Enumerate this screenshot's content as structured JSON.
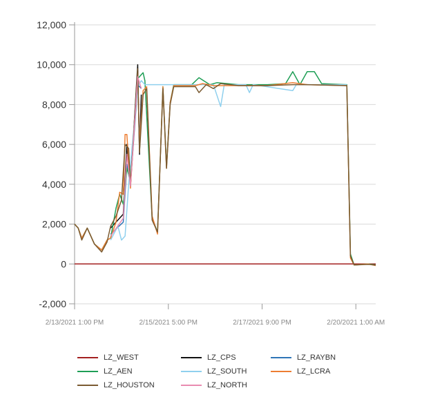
{
  "chart_data": {
    "type": "line",
    "title": "",
    "xlabel": "",
    "ylabel": "",
    "ylim": [
      -2000,
      12000
    ],
    "yticks": [
      -2000,
      0,
      2000,
      4000,
      6000,
      8000,
      10000,
      12000
    ],
    "ytick_labels": [
      "-2,000",
      "0",
      "2,000",
      "4,000",
      "6,000",
      "8,000",
      "10,000",
      "12,000"
    ],
    "xlim": [
      "2021-02-13 13:00",
      "2021-02-20 12:00"
    ],
    "xticks": [
      "2021-02-13 13:00",
      "2021-02-15 17:00",
      "2021-02-17 21:00",
      "2021-02-20 01:00"
    ],
    "xtick_labels": [
      "2/13/2021 1:00 PM",
      "2/15/2021 5:00 PM",
      "2/17/2021 9:00 PM",
      "2/20/2021 1:00 AM"
    ],
    "grid": "horizontal",
    "legend_position": "bottom",
    "series": [
      {
        "name": "LZ_WEST",
        "color": "#a31f1f",
        "points": [
          [
            "2021-02-13 13:00",
            0
          ],
          [
            "2021-02-20 12:00",
            0
          ]
        ]
      },
      {
        "name": "LZ_CPS",
        "color": "#111111",
        "points": [
          [
            "2021-02-14 09:00",
            1800
          ],
          [
            "2021-02-14 16:00",
            2500
          ],
          [
            "2021-02-14 18:00",
            6000
          ],
          [
            "2021-02-14 20:00",
            3900
          ],
          [
            "2021-02-15 00:00",
            10000
          ],
          [
            "2021-02-15 01:00",
            5500
          ],
          [
            "2021-02-15 02:00",
            8500
          ]
        ]
      },
      {
        "name": "LZ_RAYBN",
        "color": "#2e75b6",
        "points": [
          [
            "2021-02-14 09:00",
            1500
          ],
          [
            "2021-02-14 16:00",
            2100
          ],
          [
            "2021-02-14 18:00",
            5000
          ],
          [
            "2021-02-14 20:00",
            4000
          ],
          [
            "2021-02-15 00:00",
            9000
          ],
          [
            "2021-02-15 02:00",
            8800
          ]
        ]
      },
      {
        "name": "LZ_AEN",
        "color": "#1e9e55",
        "points": [
          [
            "2021-02-13 13:00",
            2000
          ],
          [
            "2021-02-13 15:00",
            1800
          ],
          [
            "2021-02-13 17:00",
            1300
          ],
          [
            "2021-02-13 20:00",
            1800
          ],
          [
            "2021-02-14 00:00",
            1000
          ],
          [
            "2021-02-14 04:00",
            700
          ],
          [
            "2021-02-14 07:00",
            1200
          ],
          [
            "2021-02-14 09:00",
            1300
          ],
          [
            "2021-02-14 12:00",
            2800
          ],
          [
            "2021-02-14 14:00",
            3500
          ],
          [
            "2021-02-14 16:00",
            3000
          ],
          [
            "2021-02-14 18:00",
            4800
          ],
          [
            "2021-02-14 20:00",
            4200
          ],
          [
            "2021-02-15 00:00",
            9300
          ],
          [
            "2021-02-15 03:00",
            9600
          ],
          [
            "2021-02-15 04:00",
            9200
          ],
          [
            "2021-02-15 08:00",
            2300
          ],
          [
            "2021-02-15 11:00",
            1600
          ],
          [
            "2021-02-15 14:00",
            8900
          ],
          [
            "2021-02-15 16:00",
            4900
          ],
          [
            "2021-02-15 18:00",
            8100
          ],
          [
            "2021-02-15 20:00",
            9000
          ],
          [
            "2021-02-16 06:00",
            9000
          ],
          [
            "2021-02-16 10:00",
            9350
          ],
          [
            "2021-02-16 16:00",
            9000
          ],
          [
            "2021-02-16 20:00",
            9100
          ],
          [
            "2021-02-17 08:00",
            9000
          ],
          [
            "2021-02-18 00:00",
            9000
          ],
          [
            "2021-02-18 10:00",
            9050
          ],
          [
            "2021-02-18 14:00",
            9650
          ],
          [
            "2021-02-18 18:00",
            9000
          ],
          [
            "2021-02-18 22:00",
            9650
          ],
          [
            "2021-02-19 02:00",
            9650
          ],
          [
            "2021-02-19 06:00",
            9050
          ],
          [
            "2021-02-19 20:00",
            9000
          ],
          [
            "2021-02-19 22:00",
            500
          ],
          [
            "2021-02-20 00:00",
            -50
          ],
          [
            "2021-02-20 08:00",
            0
          ],
          [
            "2021-02-20 12:00",
            -50
          ]
        ]
      },
      {
        "name": "LZ_SOUTH",
        "color": "#8fd0ee",
        "points": [
          [
            "2021-02-14 09:00",
            1200
          ],
          [
            "2021-02-14 13:00",
            1900
          ],
          [
            "2021-02-14 15:00",
            1200
          ],
          [
            "2021-02-14 17:00",
            1400
          ],
          [
            "2021-02-14 19:00",
            4000
          ],
          [
            "2021-02-15 00:00",
            8900
          ],
          [
            "2021-02-15 02:00",
            9200
          ],
          [
            "2021-02-15 04:00",
            9000
          ],
          [
            "2021-02-16 18:00",
            9000
          ],
          [
            "2021-02-16 22:00",
            7900
          ],
          [
            "2021-02-17 00:00",
            9000
          ],
          [
            "2021-02-17 12:00",
            9000
          ],
          [
            "2021-02-17 14:00",
            8600
          ],
          [
            "2021-02-17 16:00",
            9000
          ],
          [
            "2021-02-18 14:00",
            8700
          ],
          [
            "2021-02-18 16:00",
            9000
          ],
          [
            "2021-02-19 20:00",
            9000
          ]
        ]
      },
      {
        "name": "LZ_LCRA",
        "color": "#ed7d31",
        "points": [
          [
            "2021-02-13 13:00",
            2000
          ],
          [
            "2021-02-13 15:00",
            1800
          ],
          [
            "2021-02-13 17:00",
            1300
          ],
          [
            "2021-02-13 20:00",
            1800
          ],
          [
            "2021-02-14 00:00",
            1000
          ],
          [
            "2021-02-14 04:00",
            700
          ],
          [
            "2021-02-14 07:00",
            1200
          ],
          [
            "2021-02-14 09:00",
            1300
          ],
          [
            "2021-02-14 12:00",
            2100
          ],
          [
            "2021-02-14 14:00",
            3600
          ],
          [
            "2021-02-14 16:00",
            3500
          ],
          [
            "2021-02-14 17:00",
            6500
          ],
          [
            "2021-02-14 18:00",
            6500
          ],
          [
            "2021-02-14 20:00",
            3800
          ],
          [
            "2021-02-15 00:00",
            9600
          ],
          [
            "2021-02-15 01:00",
            6000
          ],
          [
            "2021-02-15 03:00",
            8700
          ],
          [
            "2021-02-15 05:00",
            8900
          ],
          [
            "2021-02-15 08:00",
            2400
          ],
          [
            "2021-02-15 11:00",
            1500
          ],
          [
            "2021-02-15 14:00",
            8900
          ],
          [
            "2021-02-15 16:00",
            4800
          ],
          [
            "2021-02-15 18:00",
            8100
          ],
          [
            "2021-02-15 20:00",
            8950
          ],
          [
            "2021-02-16 08:00",
            8950
          ],
          [
            "2021-02-16 12:00",
            9050
          ],
          [
            "2021-02-16 18:00",
            8950
          ],
          [
            "2021-02-17 08:00",
            8950
          ],
          [
            "2021-02-18 00:00",
            8950
          ],
          [
            "2021-02-18 14:00",
            9100
          ],
          [
            "2021-02-18 22:00",
            9000
          ],
          [
            "2021-02-19 20:00",
            8950
          ],
          [
            "2021-02-19 22:00",
            300
          ],
          [
            "2021-02-20 00:00",
            -50
          ],
          [
            "2021-02-20 08:00",
            0
          ],
          [
            "2021-02-20 12:00",
            -80
          ]
        ]
      },
      {
        "name": "LZ_HOUSTON",
        "color": "#7a5a30",
        "points": [
          [
            "2021-02-13 13:00",
            2000
          ],
          [
            "2021-02-13 15:00",
            1800
          ],
          [
            "2021-02-13 17:00",
            1200
          ],
          [
            "2021-02-13 20:00",
            1800
          ],
          [
            "2021-02-14 00:00",
            1000
          ],
          [
            "2021-02-14 04:00",
            600
          ],
          [
            "2021-02-14 07:00",
            1100
          ],
          [
            "2021-02-14 09:00",
            1900
          ],
          [
            "2021-02-14 12:00",
            2400
          ],
          [
            "2021-02-14 15:00",
            3200
          ],
          [
            "2021-02-14 17:00",
            6000
          ],
          [
            "2021-02-14 19:00",
            5800
          ],
          [
            "2021-02-14 20:00",
            3900
          ],
          [
            "2021-02-15 00:00",
            9800
          ],
          [
            "2021-02-15 01:00",
            5600
          ],
          [
            "2021-02-15 03:00",
            8500
          ],
          [
            "2021-02-15 05:00",
            8800
          ],
          [
            "2021-02-15 08:00",
            2200
          ],
          [
            "2021-02-15 11:00",
            1600
          ],
          [
            "2021-02-15 14:00",
            8800
          ],
          [
            "2021-02-15 16:00",
            4800
          ],
          [
            "2021-02-15 18:00",
            8000
          ],
          [
            "2021-02-15 20:00",
            8900
          ],
          [
            "2021-02-16 08:00",
            8900
          ],
          [
            "2021-02-16 10:00",
            8600
          ],
          [
            "2021-02-16 14:00",
            9000
          ],
          [
            "2021-02-16 18:00",
            8800
          ],
          [
            "2021-02-16 22:00",
            9050
          ],
          [
            "2021-02-17 08:00",
            8950
          ],
          [
            "2021-02-18 00:00",
            8950
          ],
          [
            "2021-02-18 14:00",
            9000
          ],
          [
            "2021-02-18 22:00",
            9000
          ],
          [
            "2021-02-19 20:00",
            8950
          ],
          [
            "2021-02-19 22:00",
            400
          ],
          [
            "2021-02-20 00:00",
            -50
          ],
          [
            "2021-02-20 08:00",
            -20
          ],
          [
            "2021-02-20 12:00",
            -60
          ]
        ]
      },
      {
        "name": "LZ_NORTH",
        "color": "#e98bb0",
        "points": [
          [
            "2021-02-14 09:00",
            1400
          ],
          [
            "2021-02-14 16:00",
            2300
          ],
          [
            "2021-02-14 18:00",
            5500
          ],
          [
            "2021-02-14 20:00",
            3900
          ],
          [
            "2021-02-15 00:00",
            9400
          ],
          [
            "2021-02-15 02:00",
            8800
          ]
        ]
      }
    ]
  }
}
